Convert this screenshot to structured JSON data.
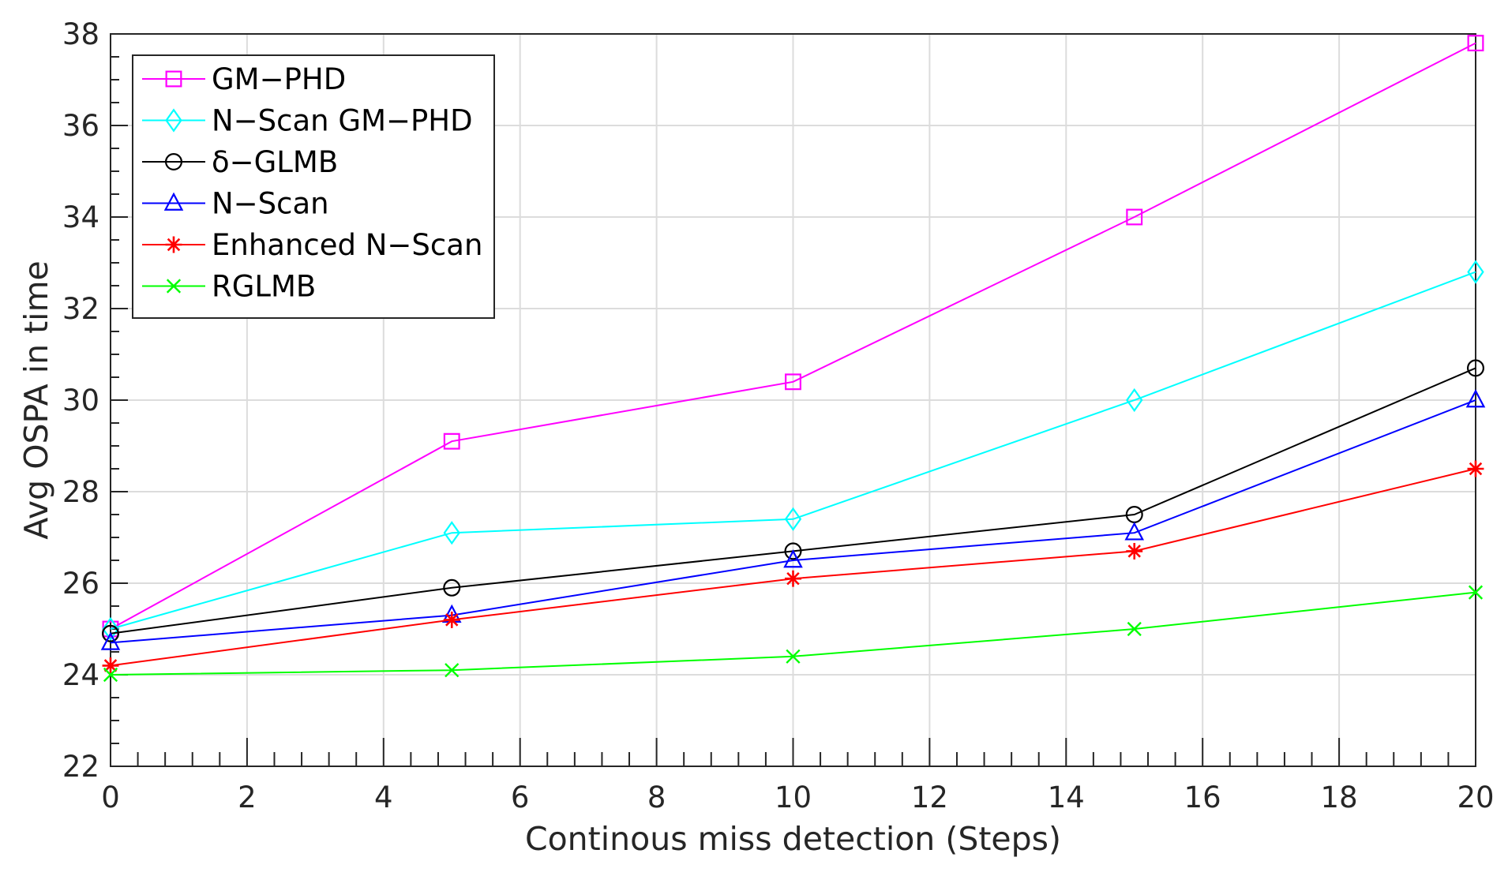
{
  "chart_data": {
    "type": "line",
    "title": "",
    "xlabel": "Continous miss detection (Steps)",
    "ylabel": "Avg OSPA in time",
    "xlim": [
      0,
      20
    ],
    "ylim": [
      22,
      38
    ],
    "xticks": [
      0,
      2,
      4,
      6,
      8,
      10,
      12,
      14,
      16,
      18,
      20
    ],
    "yticks": [
      22,
      24,
      26,
      28,
      30,
      32,
      34,
      36,
      38
    ],
    "grid": true,
    "legend_position": "top-left",
    "x": [
      0,
      5,
      10,
      15,
      20
    ],
    "series": [
      {
        "name": "GM−PHD",
        "color": "#ff00ff",
        "marker": "square",
        "values": [
          25.0,
          29.1,
          30.4,
          34.0,
          37.8
        ]
      },
      {
        "name": "N−Scan GM−PHD",
        "color": "#00ffff",
        "marker": "diamond",
        "values": [
          25.0,
          27.1,
          27.4,
          30.0,
          32.8
        ]
      },
      {
        "name": "δ−GLMB",
        "color": "#000000",
        "marker": "circle",
        "values": [
          24.9,
          25.9,
          26.7,
          27.5,
          30.7
        ]
      },
      {
        "name": "N−Scan",
        "color": "#0000ff",
        "marker": "triangle",
        "values": [
          24.7,
          25.3,
          26.5,
          27.1,
          30.0
        ]
      },
      {
        "name": "Enhanced N−Scan",
        "color": "#ff0000",
        "marker": "asterisk",
        "values": [
          24.2,
          25.2,
          26.1,
          26.7,
          28.5
        ]
      },
      {
        "name": "RGLMB",
        "color": "#00ff00",
        "marker": "x",
        "values": [
          24.0,
          24.1,
          24.4,
          25.0,
          25.8
        ]
      }
    ]
  }
}
